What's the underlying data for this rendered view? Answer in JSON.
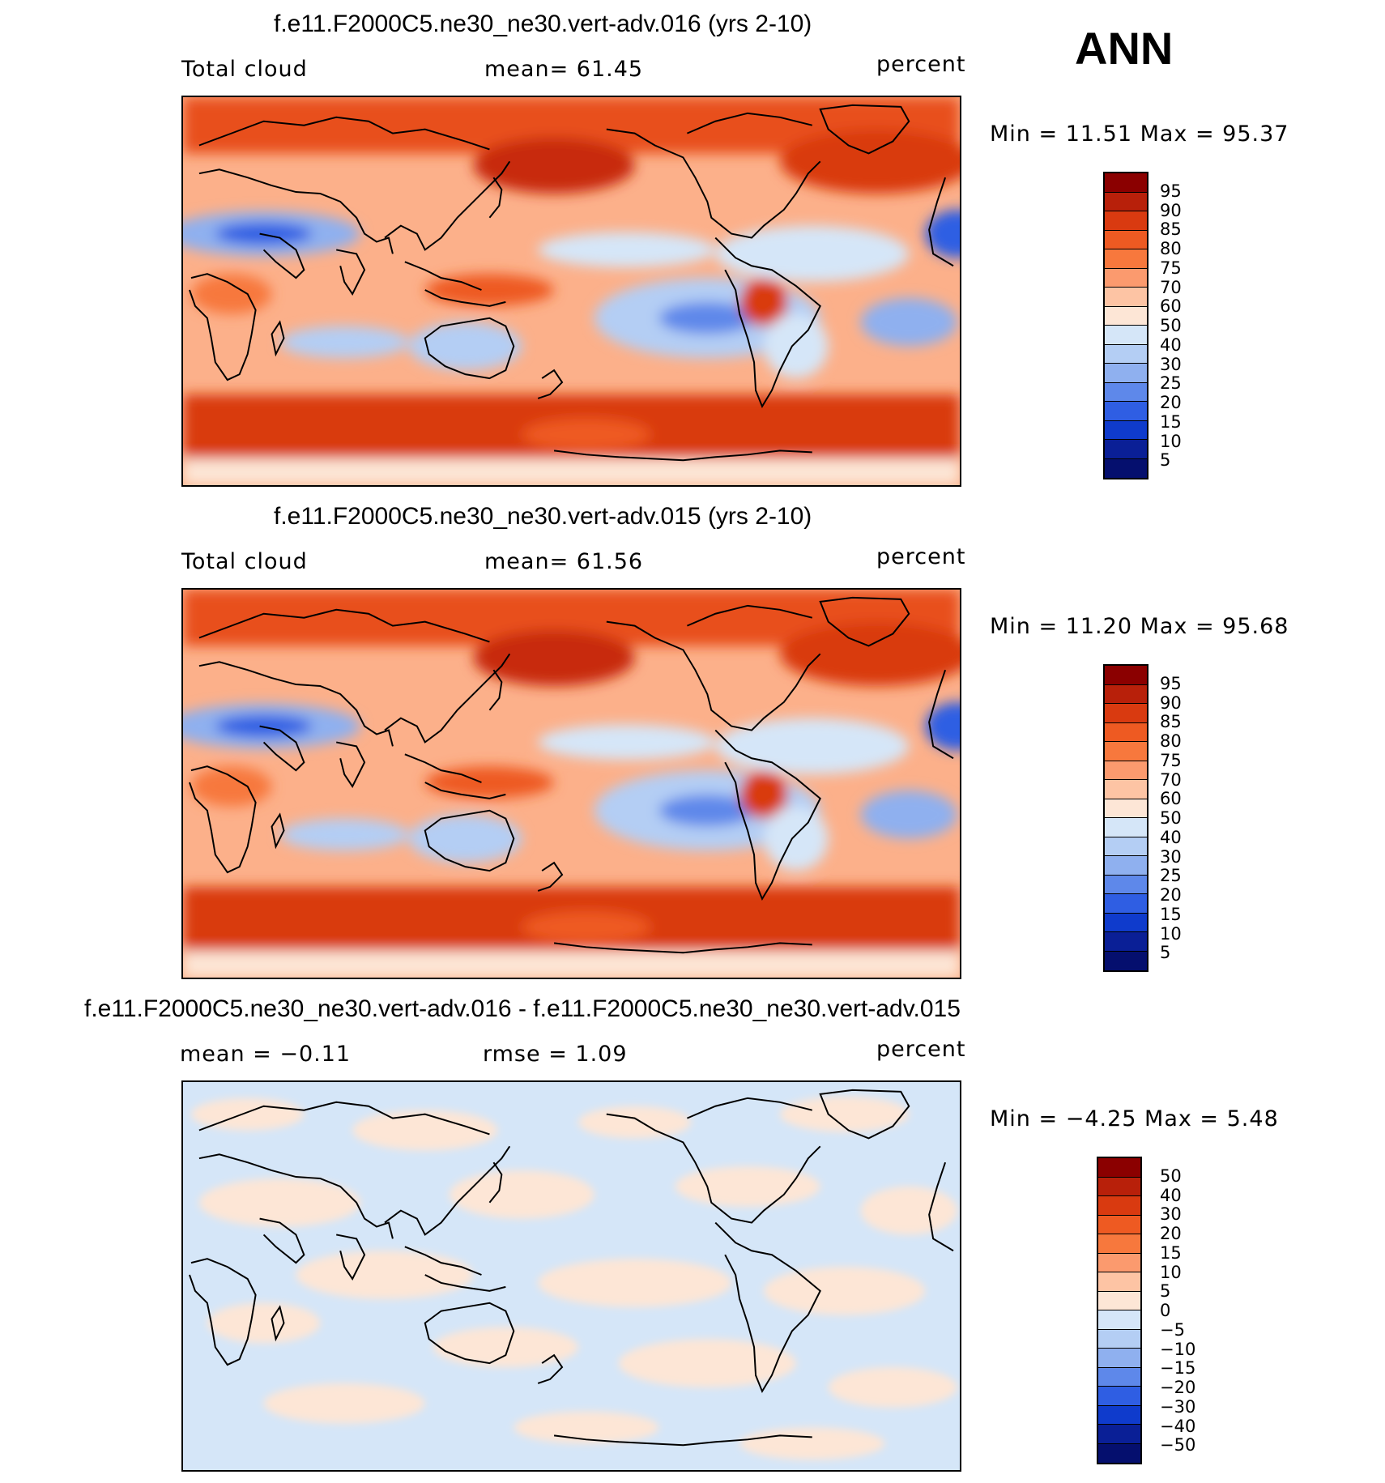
{
  "season": "ANN",
  "panels": [
    {
      "title": "f.e11.F2000C5.ne30_ne30.vert-adv.016 (yrs 2-10)",
      "left_label": "Total cloud",
      "center_label": "mean=   61.45",
      "units": "percent",
      "minmax": "Min =    11.51  Max =    95.37",
      "colorbar_labels": [
        "95",
        "90",
        "85",
        "80",
        "75",
        "70",
        "60",
        "50",
        "40",
        "30",
        "25",
        "20",
        "15",
        "10",
        "5"
      ],
      "colors": [
        "#8b0000",
        "#b8200a",
        "#d93a10",
        "#ee5a22",
        "#f7783d",
        "#fb9a6e",
        "#fdc4a4",
        "#fde6d6",
        "#d5e6f8",
        "#b4cef4",
        "#8fb0ef",
        "#5e88ea",
        "#2f5ee3",
        "#0f3bcc",
        "#0a1f96",
        "#050f6e"
      ]
    },
    {
      "title": "f.e11.F2000C5.ne30_ne30.vert-adv.015 (yrs 2-10)",
      "left_label": "Total cloud",
      "center_label": "mean=   61.56",
      "units": "percent",
      "minmax": "Min =    11.20  Max =    95.68",
      "colorbar_labels": [
        "95",
        "90",
        "85",
        "80",
        "75",
        "70",
        "60",
        "50",
        "40",
        "30",
        "25",
        "20",
        "15",
        "10",
        "5"
      ],
      "colors": [
        "#8b0000",
        "#b8200a",
        "#d93a10",
        "#ee5a22",
        "#f7783d",
        "#fb9a6e",
        "#fdc4a4",
        "#fde6d6",
        "#d5e6f8",
        "#b4cef4",
        "#8fb0ef",
        "#5e88ea",
        "#2f5ee3",
        "#0f3bcc",
        "#0a1f96",
        "#050f6e"
      ]
    },
    {
      "title": "f.e11.F2000C5.ne30_ne30.vert-adv.016 - f.e11.F2000C5.ne30_ne30.vert-adv.015",
      "left_label": "mean =   −0.11",
      "center_label": "rmse =     1.09",
      "units": "percent",
      "minmax": "Min =   −4.25  Max =     5.48",
      "colorbar_labels": [
        "50",
        "40",
        "30",
        "20",
        "15",
        "10",
        "5",
        "0",
        "−5",
        "−10",
        "−15",
        "−20",
        "−30",
        "−40",
        "−50"
      ],
      "colors": [
        "#8b0000",
        "#b8200a",
        "#d93a10",
        "#ee5a22",
        "#f7783d",
        "#fb9a6e",
        "#fdc4a4",
        "#fde6d6",
        "#d5e6f8",
        "#b4cef4",
        "#8fb0ef",
        "#5e88ea",
        "#2f5ee3",
        "#0f3bcc",
        "#0a1f96",
        "#050f6e"
      ]
    }
  ]
}
